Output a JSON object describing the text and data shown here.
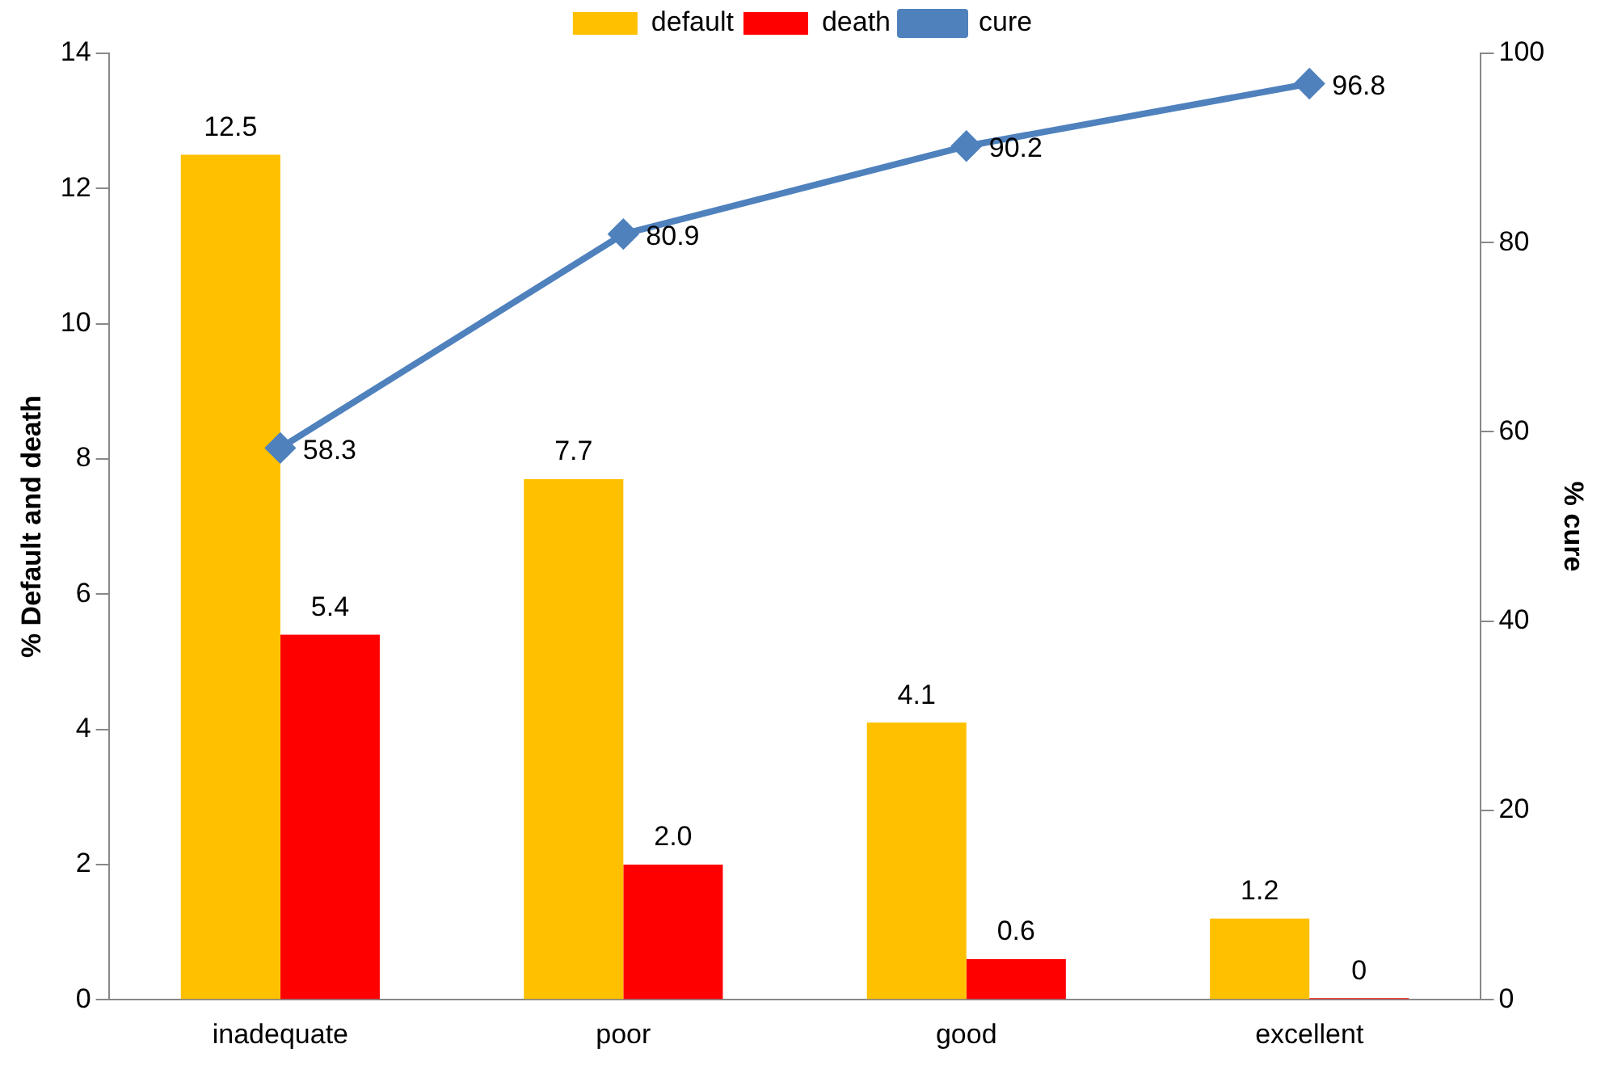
{
  "chart_data": {
    "type": "bar",
    "ylabel": "% Default and death",
    "y2label": "% cure",
    "categories": [
      "inadequate",
      "poor",
      "good",
      "excellent"
    ],
    "series": [
      {
        "name": "default",
        "color": "#ffc000",
        "values": [
          12.5,
          7.7,
          4.1,
          1.2
        ],
        "value_labels": [
          "12.5",
          "7.7",
          "4.1",
          "1.2"
        ]
      },
      {
        "name": "death",
        "color": "#ff0000",
        "values": [
          5.4,
          2,
          0.6,
          0
        ],
        "value_labels": [
          "5.4",
          "2.0",
          "0.6",
          "0"
        ]
      },
      {
        "name": "cure",
        "type": "line",
        "axis": "y2",
        "color": "#4f81bd",
        "marker": "diamond",
        "values": [
          58.3,
          80.9,
          90.2,
          96.8
        ],
        "value_labels": [
          "58.3",
          "80.9",
          "90.2",
          "96.8"
        ]
      }
    ],
    "ylim": [
      0,
      14
    ],
    "yticks": [
      0,
      2,
      4,
      6,
      8,
      10,
      12,
      14
    ],
    "y2lim": [
      0,
      100
    ],
    "y2ticks": [
      0,
      20,
      40,
      60,
      80,
      100
    ],
    "grid": false,
    "legend": "top"
  }
}
